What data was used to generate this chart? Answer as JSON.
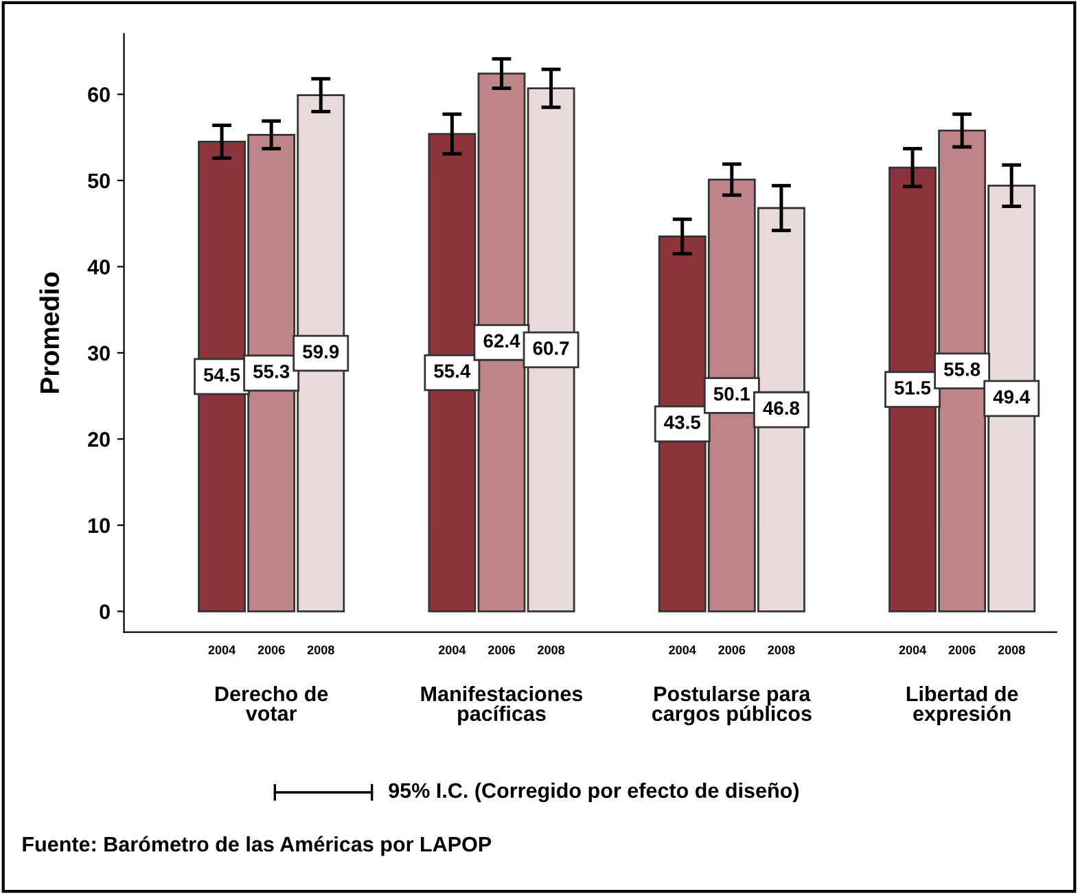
{
  "chart_data": {
    "type": "bar",
    "ylabel": "Promedio",
    "categories": [
      "Derecho de\nvotar",
      "Manifestaciones\npacíficas",
      "Postularse para\ncargos públicos",
      "Libertad de\nexpresión"
    ],
    "series": [
      {
        "name": "2004",
        "color": "#8b343c",
        "values": [
          54.5,
          55.4,
          43.5,
          51.5
        ],
        "errors": [
          1.9,
          2.3,
          2.0,
          2.2
        ]
      },
      {
        "name": "2006",
        "color": "#bd8587",
        "values": [
          55.3,
          62.4,
          50.1,
          55.8
        ],
        "errors": [
          1.6,
          1.7,
          1.8,
          1.9
        ]
      },
      {
        "name": "2008",
        "color": "#ead9da",
        "values": [
          59.9,
          60.7,
          46.8,
          49.4
        ],
        "errors": [
          1.9,
          2.2,
          2.6,
          2.4
        ]
      }
    ],
    "ylim": [
      -2.4,
      67
    ],
    "yticks": [
      0,
      10,
      20,
      30,
      40,
      50,
      60
    ],
    "data_labels": true,
    "grid": false,
    "legend": false,
    "annotations": [
      "95% I.C. (Corregido por efecto de diseño)",
      "Fuente: Barómetro de las Américas por LAPOP"
    ]
  }
}
